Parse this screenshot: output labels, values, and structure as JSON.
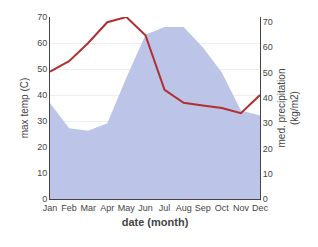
{
  "chart_data": {
    "type": "line",
    "xlabel": "date (month)",
    "ylabel": "max temp (C)",
    "y2label": "med. precipitation\n(kg/m2)",
    "categories": [
      "Jan",
      "Feb",
      "Mar",
      "Apr",
      "May",
      "Jun",
      "Jul",
      "Aug",
      "Sep",
      "Oct",
      "Nov",
      "Dec"
    ],
    "series": [
      {
        "type": "area",
        "axis": "y2",
        "color": "#bcc5e8",
        "values": [
          38,
          28,
          27,
          30,
          48,
          65,
          68,
          68,
          60,
          50,
          35,
          33
        ]
      },
      {
        "type": "line",
        "axis": "y",
        "color": "#b03030",
        "values": [
          49,
          53,
          60,
          68,
          70,
          63,
          42,
          37,
          36,
          35,
          33,
          40
        ]
      }
    ],
    "ylim": [
      0,
      70
    ],
    "yticks": [
      0,
      10,
      20,
      30,
      40,
      50,
      60,
      70
    ],
    "y2lim": [
      0,
      72
    ],
    "y2ticks": [
      0,
      10,
      20,
      30,
      40,
      50,
      60,
      70
    ],
    "grid": true
  }
}
